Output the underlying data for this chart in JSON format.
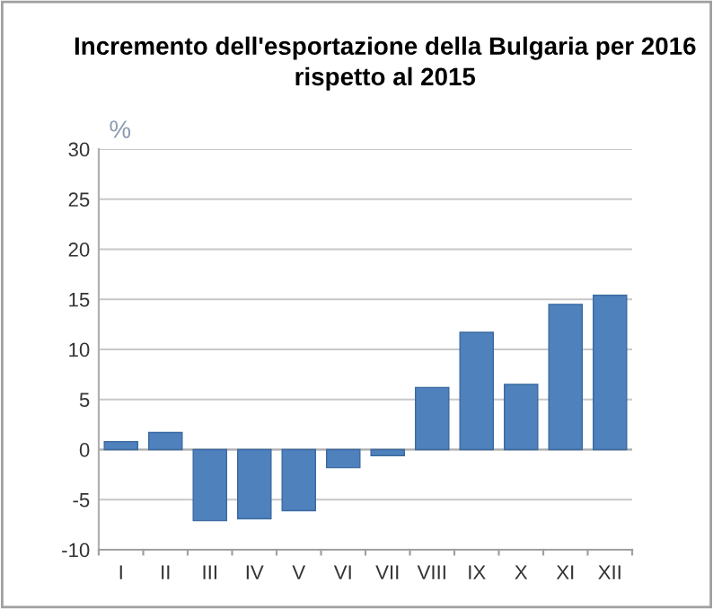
{
  "chart_data": {
    "type": "bar",
    "title": "Incremento dell'esportazione della Bulgaria per 2016\nrispetto al 2015",
    "ylabel": "%",
    "categories": [
      "I",
      "II",
      "III",
      "IV",
      "V",
      "VI",
      "VII",
      "VIII",
      "IX",
      "X",
      "XI",
      "XII"
    ],
    "values": [
      0.8,
      1.7,
      -7.1,
      -6.9,
      -6.1,
      -1.8,
      -0.6,
      6.2,
      11.7,
      6.5,
      14.5,
      15.4
    ],
    "color": "#4f81bd",
    "ylim": [
      -10,
      30
    ],
    "yticks": [
      -10,
      -5,
      0,
      5,
      10,
      15,
      20,
      25,
      30
    ],
    "grid": "y"
  }
}
